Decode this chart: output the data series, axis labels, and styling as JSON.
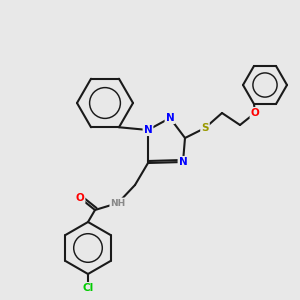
{
  "background_color": "#e8e8e8",
  "fig_width": 3.0,
  "fig_height": 3.0,
  "dpi": 100,
  "lw": 1.5,
  "colors": {
    "C": "#1a1a1a",
    "N": "#0000ff",
    "O": "#ff0000",
    "S": "#999900",
    "Cl": "#00cc00",
    "H": "#888888",
    "bond": "#1a1a1a"
  },
  "font_size": 7.5
}
